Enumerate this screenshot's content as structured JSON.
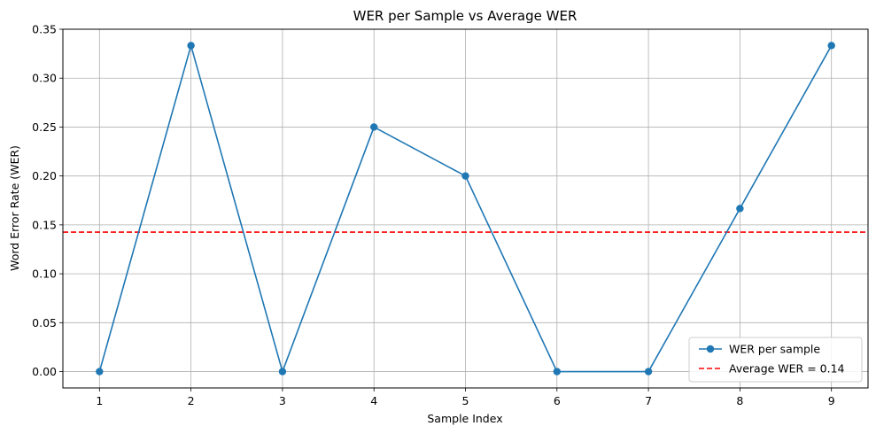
{
  "chart_data": {
    "type": "line",
    "title": "WER per Sample vs Average WER",
    "xlabel": "Sample Index",
    "ylabel": "Word Error Rate (WER)",
    "x": [
      1,
      2,
      3,
      4,
      5,
      6,
      7,
      8,
      9
    ],
    "xlim": [
      0.6,
      9.4
    ],
    "ylim": [
      -0.0167,
      0.35
    ],
    "yticks": [
      "0.00",
      "0.05",
      "0.10",
      "0.15",
      "0.20",
      "0.25",
      "0.30",
      "0.35"
    ],
    "xticks": [
      "1",
      "2",
      "3",
      "4",
      "5",
      "6",
      "7",
      "8",
      "9"
    ],
    "grid": true,
    "legend_position": "lower right",
    "series": [
      {
        "name": "WER per sample",
        "values": [
          0.0,
          0.3333,
          0.0,
          0.25,
          0.2,
          0.0,
          0.0,
          0.1667,
          0.3333
        ],
        "color": "#1f77b4",
        "marker": "circle",
        "linestyle": "solid"
      }
    ],
    "reference_lines": [
      {
        "name": "Average WER = 0.14",
        "y": 0.1426,
        "color": "#ff0000",
        "linestyle": "dashed"
      }
    ]
  }
}
